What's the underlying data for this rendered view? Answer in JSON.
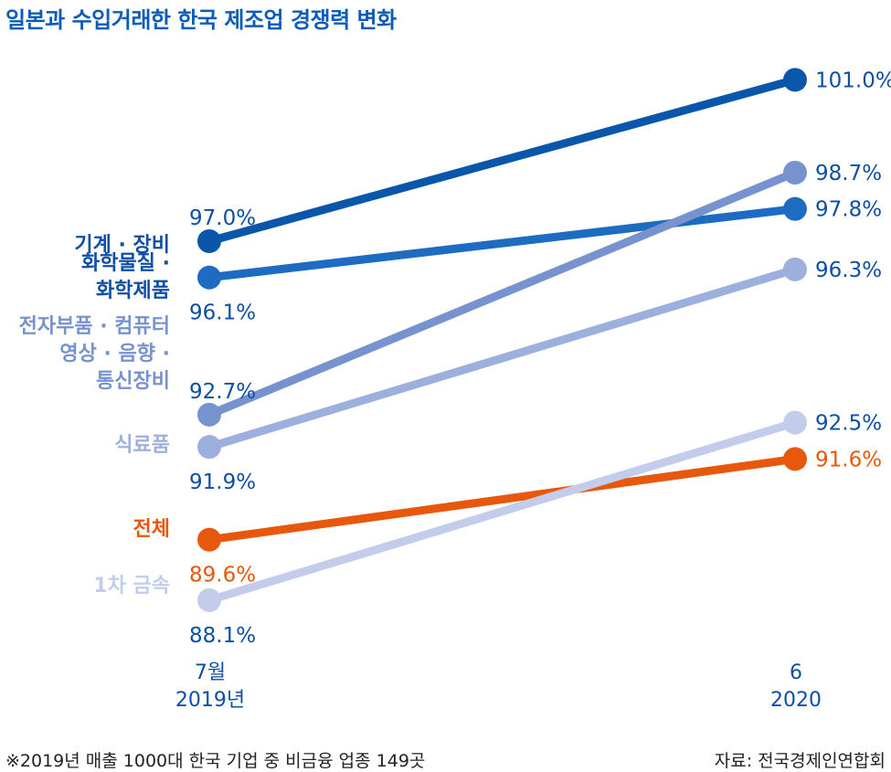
{
  "title": "일본과 수입거래한 한국 제조업 경쟁력 변화",
  "footnote": "※2019년 매출 1000대 한국 기업 중 비금융 업종 149곳",
  "source": "자료: 전국경제인연합회",
  "chart_data": {
    "type": "line",
    "title": "일본과 수입거래한 한국 제조업 경쟁력 변화",
    "categories": [
      {
        "line1": "7월",
        "line2": "2019년"
      },
      {
        "line1": "6",
        "line2": "2020"
      }
    ],
    "series": [
      {
        "name": "기계 · 장비",
        "name_lines": [
          "기계 · 장비"
        ],
        "values": [
          97.0,
          101.0
        ],
        "labels": [
          "97.0%",
          "101.0%"
        ],
        "color": "#0a56ab",
        "label_color": "#0d4ea6"
      },
      {
        "name": "화학물질 · 화학제품",
        "name_lines": [
          "화학물질 ·",
          "화학제품"
        ],
        "values": [
          96.1,
          97.8
        ],
        "labels": [
          "96.1%",
          "97.8%"
        ],
        "color": "#1e6cc2",
        "label_color": "#0d4ea6"
      },
      {
        "name": "전자부품 · 컴퓨터 영상 · 음향 · 통신장비",
        "name_lines": [
          "전자부품 · 컴퓨터",
          "영상 · 음향 ·",
          "통신장비"
        ],
        "values": [
          92.7,
          98.7
        ],
        "labels": [
          "92.7%",
          "98.7%"
        ],
        "color": "#7692cf",
        "label_color": "#0d4ea6"
      },
      {
        "name": "식료품",
        "name_lines": [
          "식료품"
        ],
        "values": [
          91.9,
          96.3
        ],
        "labels": [
          "91.9%",
          "96.3%"
        ],
        "color": "#9db0dd",
        "label_color": "#0d4ea6"
      },
      {
        "name": "전체",
        "name_lines": [
          "전체"
        ],
        "values": [
          89.6,
          91.6
        ],
        "labels": [
          "89.6%",
          "91.6%"
        ],
        "color": "#e8580c",
        "label_color": "#e8580c"
      },
      {
        "name": "1차 금속",
        "name_lines": [
          "1차 금속"
        ],
        "values": [
          88.1,
          92.5
        ],
        "labels": [
          "88.1%",
          "92.5%"
        ],
        "color": "#c3cdeb",
        "label_color": "#0d4ea6"
      }
    ]
  }
}
